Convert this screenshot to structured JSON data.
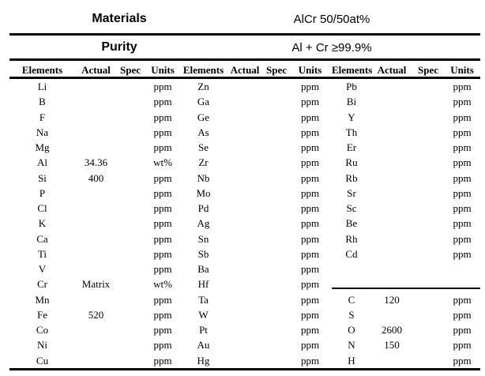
{
  "page": {
    "background_color": "#ffffff",
    "text_color": "#000000",
    "rule_color": "#000000"
  },
  "header": {
    "materials_label": "Materials",
    "materials_value": "AlCr 50/50at%",
    "purity_label": "Purity",
    "purity_value": "Al + Cr ≥99.9%"
  },
  "column_headers": [
    "Elements",
    "Actual",
    "Spec",
    "Units",
    "Elements",
    "Actual",
    "Spec",
    "Units",
    "Elements",
    "Actual",
    "Spec",
    "Units"
  ],
  "rows": [
    [
      [
        "Li",
        "",
        "",
        "ppm"
      ],
      [
        "Zn",
        "",
        "",
        "ppm"
      ],
      [
        "Pb",
        "",
        "",
        "ppm"
      ]
    ],
    [
      [
        "B",
        "",
        "",
        "ppm"
      ],
      [
        "Ga",
        "",
        "",
        "ppm"
      ],
      [
        "Bi",
        "",
        "",
        "ppm"
      ]
    ],
    [
      [
        "F",
        "",
        "",
        "ppm"
      ],
      [
        "Ge",
        "",
        "",
        "ppm"
      ],
      [
        "Y",
        "",
        "",
        "ppm"
      ]
    ],
    [
      [
        "Na",
        "",
        "",
        "ppm"
      ],
      [
        "As",
        "",
        "",
        "ppm"
      ],
      [
        "Th",
        "",
        "",
        "ppm"
      ]
    ],
    [
      [
        "Mg",
        "",
        "",
        "ppm"
      ],
      [
        "Se",
        "",
        "",
        "ppm"
      ],
      [
        "Er",
        "",
        "",
        "ppm"
      ]
    ],
    [
      [
        "Al",
        "34.36",
        "",
        "wt%"
      ],
      [
        "Zr",
        "",
        "",
        "ppm"
      ],
      [
        "Ru",
        "",
        "",
        "ppm"
      ]
    ],
    [
      [
        "Si",
        "400",
        "",
        "ppm"
      ],
      [
        "Nb",
        "",
        "",
        "ppm"
      ],
      [
        "Rb",
        "",
        "",
        "ppm"
      ]
    ],
    [
      [
        "P",
        "",
        "",
        "ppm"
      ],
      [
        "Mo",
        "",
        "",
        "ppm"
      ],
      [
        "Sr",
        "",
        "",
        "ppm"
      ]
    ],
    [
      [
        "Cl",
        "",
        "",
        "ppm"
      ],
      [
        "Pd",
        "",
        "",
        "ppm"
      ],
      [
        "Sc",
        "",
        "",
        "ppm"
      ]
    ],
    [
      [
        "K",
        "",
        "",
        "ppm"
      ],
      [
        "Ag",
        "",
        "",
        "ppm"
      ],
      [
        "Be",
        "",
        "",
        "ppm"
      ]
    ],
    [
      [
        "Ca",
        "",
        "",
        "ppm"
      ],
      [
        "Sn",
        "",
        "",
        "ppm"
      ],
      [
        "Rh",
        "",
        "",
        "ppm"
      ]
    ],
    [
      [
        "Ti",
        "",
        "",
        "ppm"
      ],
      [
        "Sb",
        "",
        "",
        "ppm"
      ],
      [
        "Cd",
        "",
        "",
        "ppm"
      ]
    ],
    [
      [
        "V",
        "",
        "",
        "ppm"
      ],
      [
        "Ba",
        "",
        "",
        "ppm"
      ],
      [
        "",
        "",
        "",
        ""
      ]
    ],
    [
      [
        "Cr",
        "Matrix",
        "",
        "wt%"
      ],
      [
        "Hf",
        "",
        "",
        "ppm"
      ],
      [
        "",
        "",
        "",
        ""
      ]
    ],
    [
      [
        "Mn",
        "",
        "",
        "ppm"
      ],
      [
        "Ta",
        "",
        "",
        "ppm"
      ],
      [
        "C",
        "120",
        "",
        "ppm"
      ]
    ],
    [
      [
        "Fe",
        "520",
        "",
        "ppm"
      ],
      [
        "W",
        "",
        "",
        "ppm"
      ],
      [
        "S",
        "",
        "",
        "ppm"
      ]
    ],
    [
      [
        "Co",
        "",
        "",
        "ppm"
      ],
      [
        "Pt",
        "",
        "",
        "ppm"
      ],
      [
        "O",
        "2600",
        "",
        "ppm"
      ]
    ],
    [
      [
        "Ni",
        "",
        "",
        "ppm"
      ],
      [
        "Au",
        "",
        "",
        "ppm"
      ],
      [
        "N",
        "150",
        "",
        "ppm"
      ]
    ],
    [
      [
        "Cu",
        "",
        "",
        "ppm"
      ],
      [
        "Hg",
        "",
        "",
        "ppm"
      ],
      [
        "H",
        "",
        "",
        "ppm"
      ]
    ]
  ]
}
